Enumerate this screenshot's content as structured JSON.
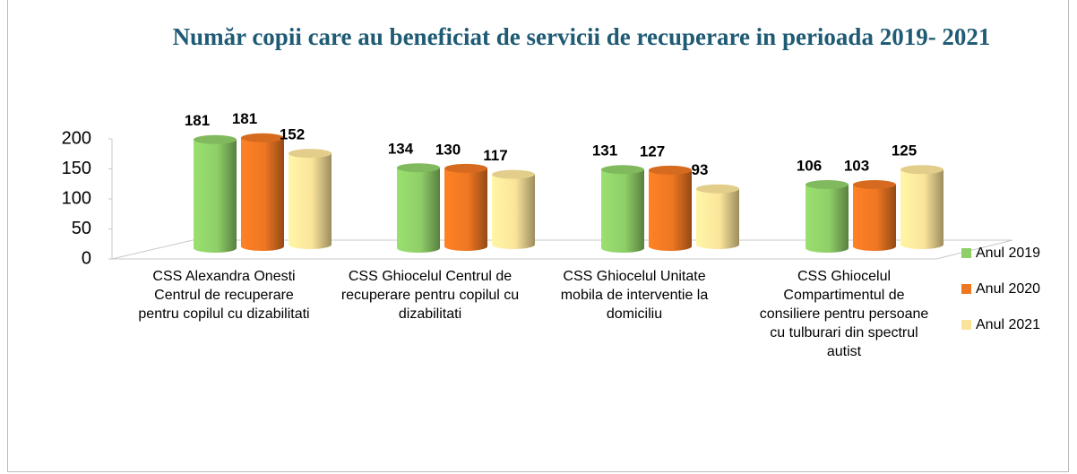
{
  "chart_data": {
    "type": "bar",
    "title": "Număr copii care au beneficiat de servicii de recuperare in perioada 2019- 2021",
    "categories": [
      "CSS Alexandra Onesti Centrul de recuperare pentru copilul cu dizabilitati",
      "CSS Ghiocelul Centrul de recuperare pentru copilul cu dizabilitati",
      "CSS Ghiocelul Unitate mobila de interventie la domiciliu",
      "CSS Ghiocelul Compartimentul de consiliere pentru persoane cu tulburari din spectrul autist"
    ],
    "series": [
      {
        "name": "Anul 2019",
        "color": "#8fcf68",
        "values": [
          181,
          134,
          131,
          106
        ]
      },
      {
        "name": "Anul 2020",
        "color": "#ee7722",
        "values": [
          181,
          130,
          127,
          103
        ]
      },
      {
        "name": "Anul 2021",
        "color": "#fbe49a",
        "values": [
          152,
          117,
          93,
          125
        ]
      }
    ],
    "ylim": [
      0,
      200
    ],
    "yticks": [
      0,
      50,
      100,
      150,
      200
    ],
    "legend": "right"
  }
}
